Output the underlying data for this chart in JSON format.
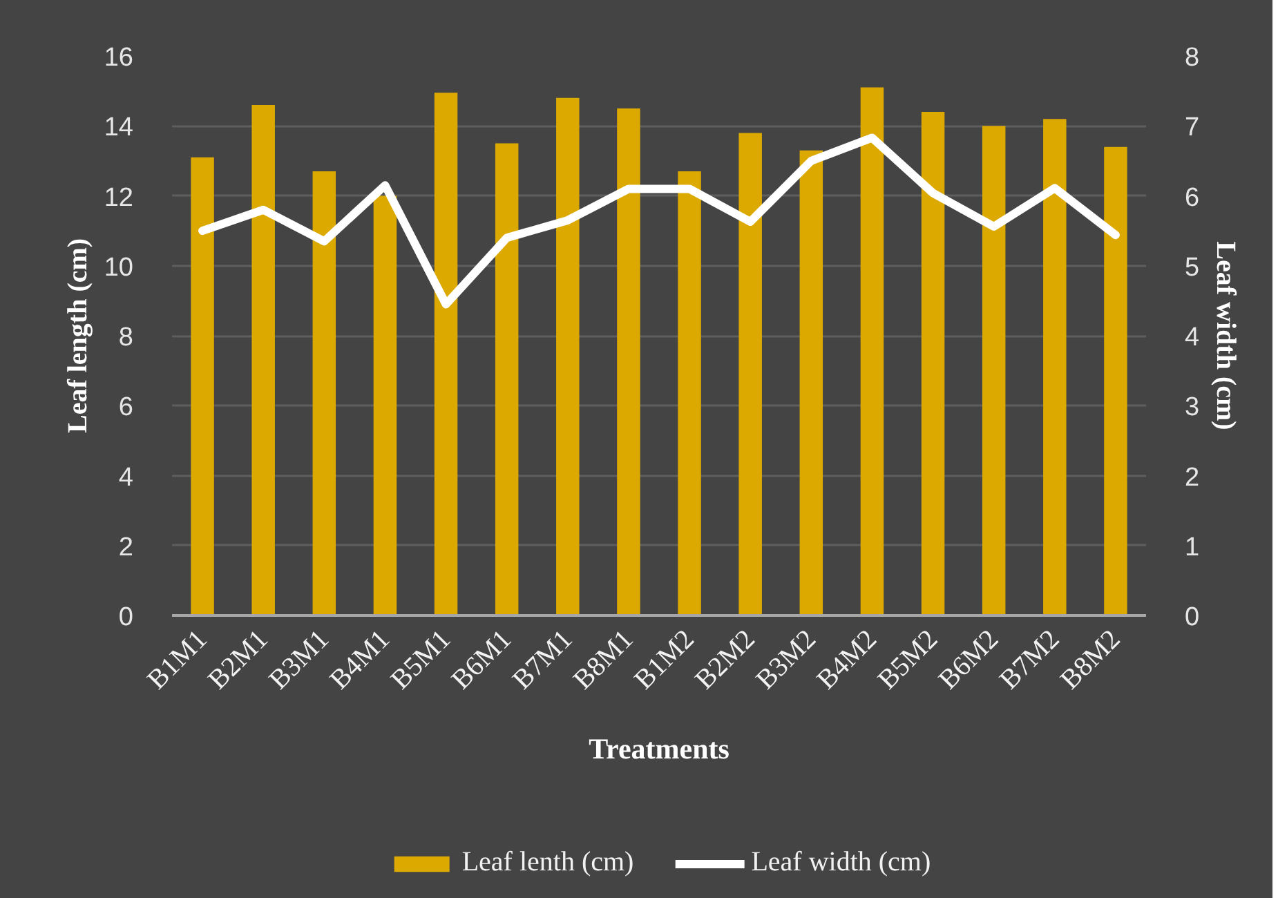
{
  "chart_data": {
    "type": "bar",
    "xlabel": "Treatments",
    "ylabel": "Leaf length (cm)",
    "y2label": "Leaf width (cm)",
    "categories": [
      "B1M1",
      "B2M1",
      "B3M1",
      "B4M1",
      "B5M1",
      "B6M1",
      "B7M1",
      "B8M1",
      "B1M2",
      "B2M2",
      "B3M2",
      "B4M2",
      "B5M2",
      "B6M2",
      "B7M2",
      "B8M2"
    ],
    "series": [
      {
        "name": "Leaf lenth (cm)",
        "type": "bar",
        "color": "#dba900",
        "values": [
          13.1,
          14.6,
          12.7,
          12.0,
          14.95,
          13.5,
          14.8,
          14.5,
          12.7,
          13.8,
          13.3,
          15.1,
          14.4,
          14.0,
          14.2,
          13.4
        ]
      },
      {
        "name": "Leaf width (cm)",
        "type": "line",
        "axis": "y2",
        "color": "#ffffff",
        "values": [
          5.5,
          5.8,
          5.35,
          6.15,
          4.45,
          5.4,
          5.65,
          6.1,
          6.1,
          5.63,
          6.5,
          6.83,
          6.04,
          5.56,
          6.11,
          5.44
        ]
      }
    ],
    "ylim": [
      0,
      16
    ],
    "yticks": [
      0,
      2,
      4,
      6,
      8,
      10,
      12,
      14,
      16
    ],
    "y2lim": [
      0,
      8
    ],
    "y2ticks": [
      0,
      1,
      2,
      3,
      4,
      5,
      6,
      7,
      8
    ],
    "grid": "y",
    "legend": "bottom"
  }
}
